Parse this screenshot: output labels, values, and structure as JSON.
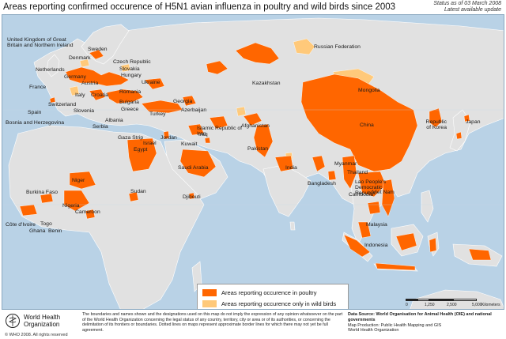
{
  "title": "Areas reporting confirmed occurence of H5N1 avian influenza in poultry and wild birds since 2003",
  "status": {
    "line1": "Status as of 03 March 2008",
    "line2": "Latest available update"
  },
  "colors": {
    "water": "#b9d2e6",
    "land": "#e1e1e1",
    "poultry": "#ff6600",
    "wild_birds": "#ffc97a",
    "border": "#ffffff"
  },
  "map_labels": [
    "United Kingdom of Great Britain and Northern Ireland",
    "Sweden",
    "Denmark",
    "Netherlands",
    "Germany",
    "Czech Republic",
    "Slovakia",
    "Hungary",
    "Austria",
    "France",
    "Italy",
    "Croatia",
    "Romania",
    "Ukraine",
    "Spain",
    "Switzerland",
    "Slovenia",
    "Bosnia and Herzegovina",
    "Serbia",
    "Albania",
    "Bulgaria",
    "Greece",
    "Turkey",
    "Georgia",
    "Azerbaijan",
    "Russian Federation",
    "Kazakhstan",
    "Mongolia",
    "China",
    "Republic of Korea",
    "Japan",
    "Islamic Republic of Iran",
    "Afghanistan",
    "Pakistan",
    "India",
    "Iraq",
    "Kuwait",
    "Gaza Strip",
    "Israel",
    "Jordan",
    "Egypt",
    "Saudi Arabia",
    "Myanmar",
    "Thailand",
    "Lao People's Democratic Republic",
    "Bangladesh",
    "Cambodia",
    "Viet Nam",
    "Malaysia",
    "Indonesia",
    "Sudan",
    "Djibouti",
    "Niger",
    "Burkina Faso",
    "Nigeria",
    "Cameroon",
    "Côte d'Ivoire",
    "Togo",
    "Ghana",
    "Benin"
  ],
  "legend": {
    "poultry": "Areas reporting occurence in poultry",
    "wild_birds": "Areas reporting occurence only in wild birds"
  },
  "scale": {
    "ticks": [
      "0",
      "1,250",
      "2,500",
      "5,000"
    ],
    "unit": "Kilometers"
  },
  "footer": {
    "org_line1": "World Health",
    "org_line2": "Organization",
    "copyright": "© WHO 2008. All rights reserved",
    "disclaimer": "The boundaries and names shown and the designations used on this map do not imply the expression of any opinion whatsoever on the part of the World Health Organization concerning the legal status of any country, territory, city or area or of its authorities, or concerning the delimitation of its frontiers or boundaries. Dotted lines on maps represent approximate border lines for which there may not yet be full agreement.",
    "source_bold": "Data Source: World Organisation for Animal Health (OIE) and national governments",
    "production": "Map Production: Public Health Mapping and GIS",
    "producer_org": "World Health Organization"
  }
}
